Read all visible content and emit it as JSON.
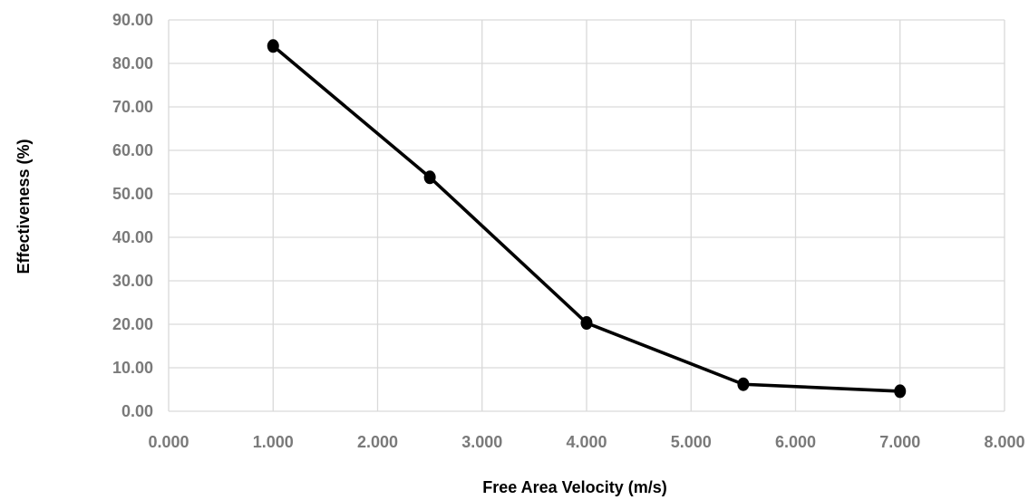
{
  "chart_data": {
    "type": "scatter",
    "title": "",
    "xlabel": "Free Area Velocity (m/s)",
    "ylabel": "Effectiveness (%)",
    "xlim": [
      0,
      8
    ],
    "ylim": [
      0,
      90
    ],
    "x_ticks": [
      "0.000",
      "1.000",
      "2.000",
      "3.000",
      "4.000",
      "5.000",
      "6.000",
      "7.000",
      "8.000"
    ],
    "y_ticks": [
      "0.00",
      "10.00",
      "20.00",
      "30.00",
      "40.00",
      "50.00",
      "60.00",
      "70.00",
      "80.00",
      "90.00"
    ],
    "grid": true,
    "legend": "none",
    "series": [
      {
        "color": "#000000",
        "markers": true,
        "lines": true,
        "points": [
          {
            "x": 1.0,
            "y": 84.0
          },
          {
            "x": 2.5,
            "y": 53.8
          },
          {
            "x": 4.0,
            "y": 20.3
          },
          {
            "x": 5.5,
            "y": 6.2
          },
          {
            "x": 7.0,
            "y": 4.6
          }
        ]
      }
    ],
    "colors": {
      "grid": "#d9d9d9",
      "tick_text": "#7a7a7a",
      "title_text": "#000000",
      "series": "#000000"
    }
  }
}
